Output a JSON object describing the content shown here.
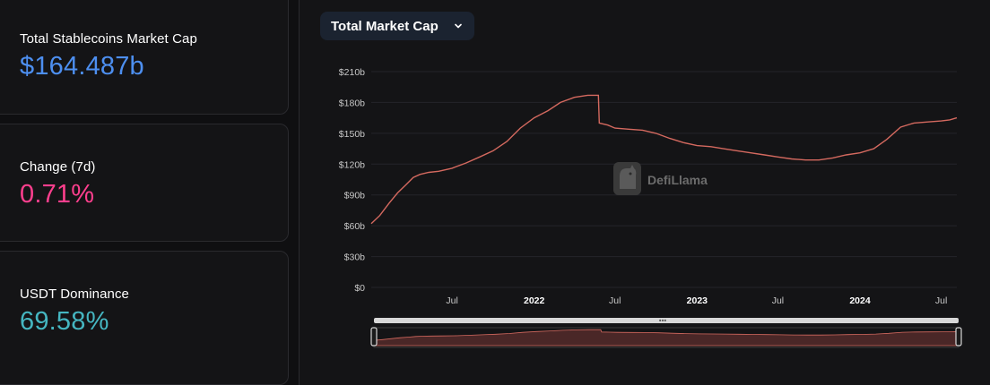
{
  "stats": {
    "market_cap": {
      "label": "Total Stablecoins Market Cap",
      "value": "$164.487b",
      "color": "#4d8ff0"
    },
    "change": {
      "label": "Change (7d)",
      "value": "0.71%",
      "color": "#ff3f8e"
    },
    "dominance": {
      "label": "USDT Dominance",
      "value": "69.58%",
      "color": "#45b6c1"
    }
  },
  "chart_controls": {
    "metric_selected": "Total Market Cap",
    "chevron_icon": "chevron-down-icon"
  },
  "watermark": {
    "text": "DefiLlama",
    "icon": "llama-logo-icon"
  },
  "colors": {
    "line": "#d4695f",
    "slider_fill": "#4a2727",
    "slider_track": "#d8d8d8"
  },
  "chart_data": {
    "type": "line",
    "title": "",
    "xlabel": "",
    "ylabel": "",
    "ylim": [
      0,
      210
    ],
    "y_unit": "billion USD",
    "y_tick_labels": [
      "$0",
      "$30b",
      "$60b",
      "$90b",
      "$120b",
      "$150b",
      "$180b",
      "$210b"
    ],
    "y_ticks": [
      0,
      30,
      60,
      90,
      120,
      150,
      180,
      210
    ],
    "x_range": [
      "2021-01-01",
      "2024-08-05"
    ],
    "x_ticks": [
      {
        "label": "Jul",
        "date": "2021-07-01",
        "year": false
      },
      {
        "label": "2022",
        "date": "2022-01-01",
        "year": true
      },
      {
        "label": "Jul",
        "date": "2022-07-01",
        "year": false
      },
      {
        "label": "2023",
        "date": "2023-01-01",
        "year": true
      },
      {
        "label": "Jul",
        "date": "2023-07-01",
        "year": false
      },
      {
        "label": "2024",
        "date": "2024-01-01",
        "year": true
      },
      {
        "label": "Jul",
        "date": "2024-07-01",
        "year": false
      }
    ],
    "grid": true,
    "series": [
      {
        "values": [
          [
            "2021-01-01",
            62
          ],
          [
            "2021-01-20",
            70
          ],
          [
            "2021-02-10",
            82
          ],
          [
            "2021-03-01",
            92
          ],
          [
            "2021-03-20",
            100
          ],
          [
            "2021-04-05",
            107
          ],
          [
            "2021-04-20",
            110
          ],
          [
            "2021-05-10",
            112
          ],
          [
            "2021-06-01",
            113
          ],
          [
            "2021-07-01",
            116
          ],
          [
            "2021-08-01",
            121
          ],
          [
            "2021-09-01",
            127
          ],
          [
            "2021-10-01",
            133
          ],
          [
            "2021-11-01",
            142
          ],
          [
            "2021-12-01",
            155
          ],
          [
            "2022-01-01",
            165
          ],
          [
            "2022-02-01",
            172
          ],
          [
            "2022-03-01",
            180
          ],
          [
            "2022-04-01",
            185
          ],
          [
            "2022-05-01",
            187
          ],
          [
            "2022-05-25",
            187
          ],
          [
            "2022-05-27",
            160
          ],
          [
            "2022-06-15",
            158
          ],
          [
            "2022-07-01",
            155
          ],
          [
            "2022-08-01",
            154
          ],
          [
            "2022-09-01",
            153
          ],
          [
            "2022-10-01",
            150
          ],
          [
            "2022-11-01",
            145
          ],
          [
            "2022-12-01",
            141
          ],
          [
            "2023-01-01",
            138
          ],
          [
            "2023-02-01",
            137
          ],
          [
            "2023-03-01",
            135
          ],
          [
            "2023-04-01",
            133
          ],
          [
            "2023-05-01",
            131
          ],
          [
            "2023-06-01",
            129
          ],
          [
            "2023-07-01",
            127
          ],
          [
            "2023-08-01",
            125
          ],
          [
            "2023-09-01",
            124
          ],
          [
            "2023-10-01",
            124
          ],
          [
            "2023-11-01",
            126
          ],
          [
            "2023-12-01",
            129
          ],
          [
            "2024-01-01",
            131
          ],
          [
            "2024-02-01",
            135
          ],
          [
            "2024-03-01",
            144
          ],
          [
            "2024-04-01",
            156
          ],
          [
            "2024-05-01",
            160
          ],
          [
            "2024-06-01",
            161
          ],
          [
            "2024-07-01",
            162
          ],
          [
            "2024-07-20",
            163
          ],
          [
            "2024-08-05",
            165
          ]
        ]
      }
    ]
  }
}
